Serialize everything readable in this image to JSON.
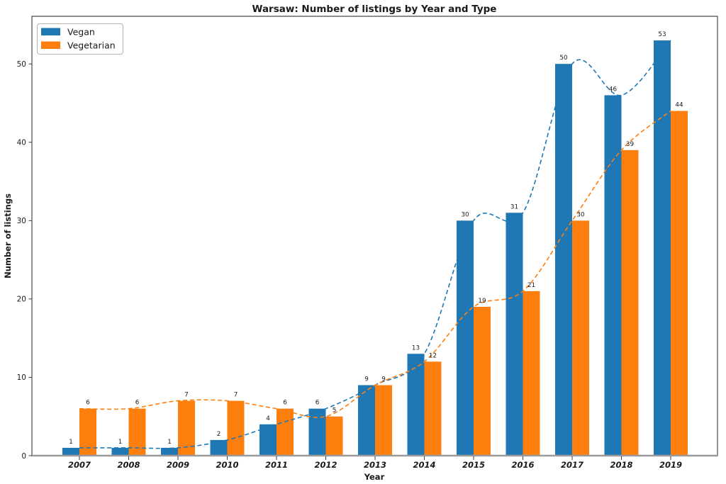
{
  "chart_data": {
    "type": "bar",
    "title": "Warsaw: Number of listings by Year and Type",
    "xlabel": "Year",
    "ylabel": "Number of listings",
    "categories": [
      "2007",
      "2008",
      "2009",
      "2010",
      "2011",
      "2012",
      "2013",
      "2014",
      "2015",
      "2016",
      "2017",
      "2018",
      "2019"
    ],
    "series": [
      {
        "name": "Vegan",
        "color": "#1f77b4",
        "values": [
          1,
          1,
          1,
          2,
          4,
          6,
          9,
          13,
          30,
          31,
          50,
          46,
          53
        ]
      },
      {
        "name": "Vegetarian",
        "color": "#ff7f0e",
        "values": [
          6,
          6,
          7,
          7,
          6,
          5,
          9,
          12,
          19,
          21,
          30,
          39,
          44
        ]
      }
    ],
    "yticks": [
      0,
      10,
      20,
      30,
      40,
      50
    ],
    "ylim": [
      0,
      56.1
    ],
    "grid": false,
    "bar_value_labels": true,
    "trend_overlay": "dashed smoothed line per series through bar values",
    "legend": {
      "position": "upper-left",
      "entries": [
        "Vegan",
        "Vegetarian"
      ]
    }
  },
  "style": {
    "spine_color": "#4a4a4a",
    "baseline_color": "#9a9a9a",
    "tick_color": "#262626",
    "label_color": "#1a1a1a",
    "legend_border": "#b3b3b3"
  }
}
